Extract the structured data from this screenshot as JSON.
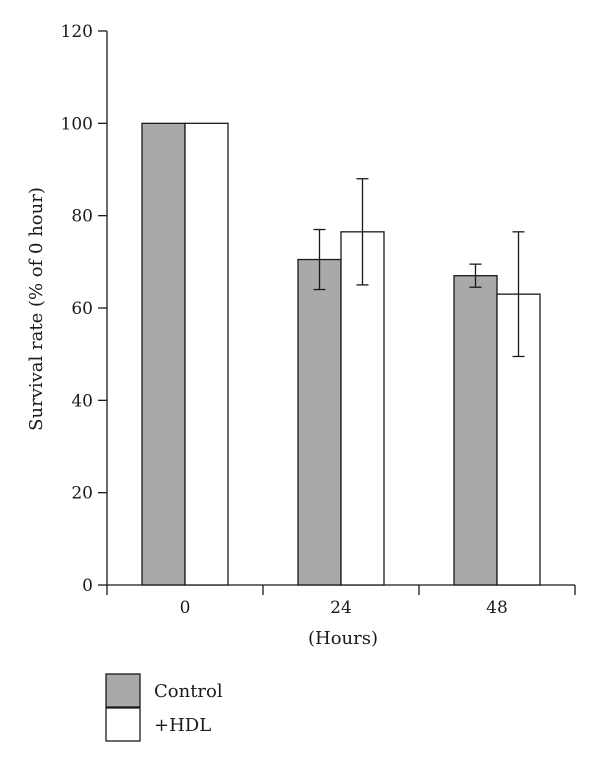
{
  "chart_data": {
    "type": "bar",
    "title": "",
    "xlabel": "(Hours)",
    "ylabel": "Survival rate (% of 0 hour)",
    "categories": [
      "0",
      "24",
      "48"
    ],
    "ylim": [
      0,
      120
    ],
    "yticks": [
      "0",
      "20",
      "40",
      "60",
      "80",
      "100",
      "120"
    ],
    "grid": false,
    "legend_position": "bottom-left",
    "series": [
      {
        "name": "Control",
        "color": "#a9a9a9",
        "values": [
          100,
          70.5,
          67
        ],
        "error": [
          0,
          6.5,
          2.5
        ]
      },
      {
        "name": "+HDL",
        "color": "#ffffff",
        "values": [
          100,
          76.5,
          63
        ],
        "error": [
          0,
          11.5,
          13.5
        ]
      }
    ]
  }
}
